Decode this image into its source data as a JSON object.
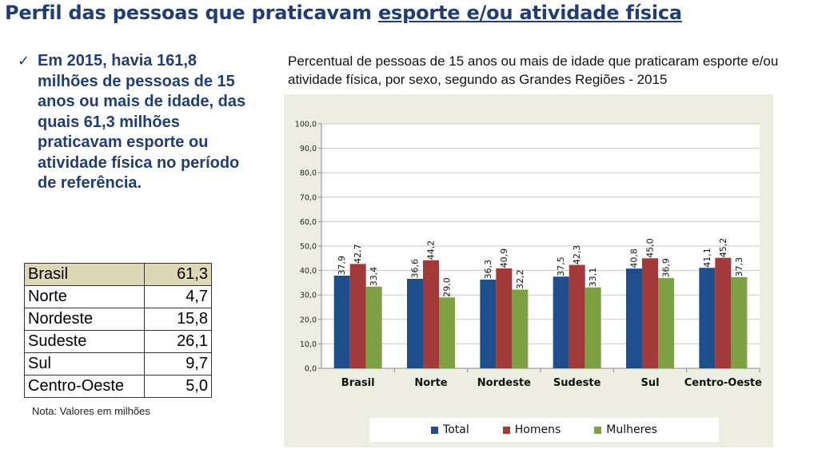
{
  "header": {
    "title_part1": "Perfil das pessoas que praticavam ",
    "title_part2": "esporte e/ou atividade física"
  },
  "summary": {
    "bullet_icon": "check-icon",
    "text": "Em 2015, havia 161,8 milhões de pessoas de 15 anos ou mais de idade, das quais 61,3 milhões praticavam esporte ou atividade física no período de referência."
  },
  "table": {
    "rows": [
      {
        "region": "Brasil",
        "value": "61,3"
      },
      {
        "region": "Norte",
        "value": "4,7"
      },
      {
        "region": "Nordeste",
        "value": "15,8"
      },
      {
        "region": "Sudeste",
        "value": "26,1"
      },
      {
        "region": "Sul",
        "value": "9,7"
      },
      {
        "region": "Centro-Oeste",
        "value": "5,0"
      }
    ],
    "note": "Nota: Valores em milhões",
    "highlight_color": "#ddd7b5"
  },
  "chart_data": {
    "type": "bar",
    "title": "Percentual de pessoas de 15 anos ou mais de idade que praticaram esporte e/ou atividade física, por sexo, segundo as Grandes Regiões - 2015",
    "categories": [
      "Brasil",
      "Norte",
      "Nordeste",
      "Sudeste",
      "Sul",
      "Centro-Oeste"
    ],
    "series": [
      {
        "name": "Total",
        "color": "#1f4e8c",
        "values": [
          37.9,
          36.6,
          36.3,
          37.5,
          40.8,
          41.1
        ],
        "labels": [
          "37,9",
          "36,6",
          "36,3",
          "37,5",
          "40,8",
          "41,1"
        ]
      },
      {
        "name": "Homens",
        "color": "#a33a3a",
        "values": [
          42.7,
          44.2,
          40.9,
          42.3,
          45.0,
          45.2
        ],
        "labels": [
          "42,7",
          "44,2",
          "40,9",
          "42,3",
          "45,0",
          "45,2"
        ]
      },
      {
        "name": "Mulheres",
        "color": "#7da043",
        "values": [
          33.4,
          29.0,
          32.2,
          33.1,
          36.9,
          37.3
        ],
        "labels": [
          "33,4",
          "29,0",
          "32,2",
          "33,1",
          "36,9",
          "37,3"
        ]
      }
    ],
    "ylim": [
      0,
      100
    ],
    "yticks": [
      "0,0",
      "10,0",
      "20,0",
      "30,0",
      "40,0",
      "50,0",
      "60,0",
      "70,0",
      "80,0",
      "90,0",
      "100,0"
    ],
    "grid": true,
    "legend": "bottom",
    "xlabel": "",
    "ylabel": ""
  }
}
